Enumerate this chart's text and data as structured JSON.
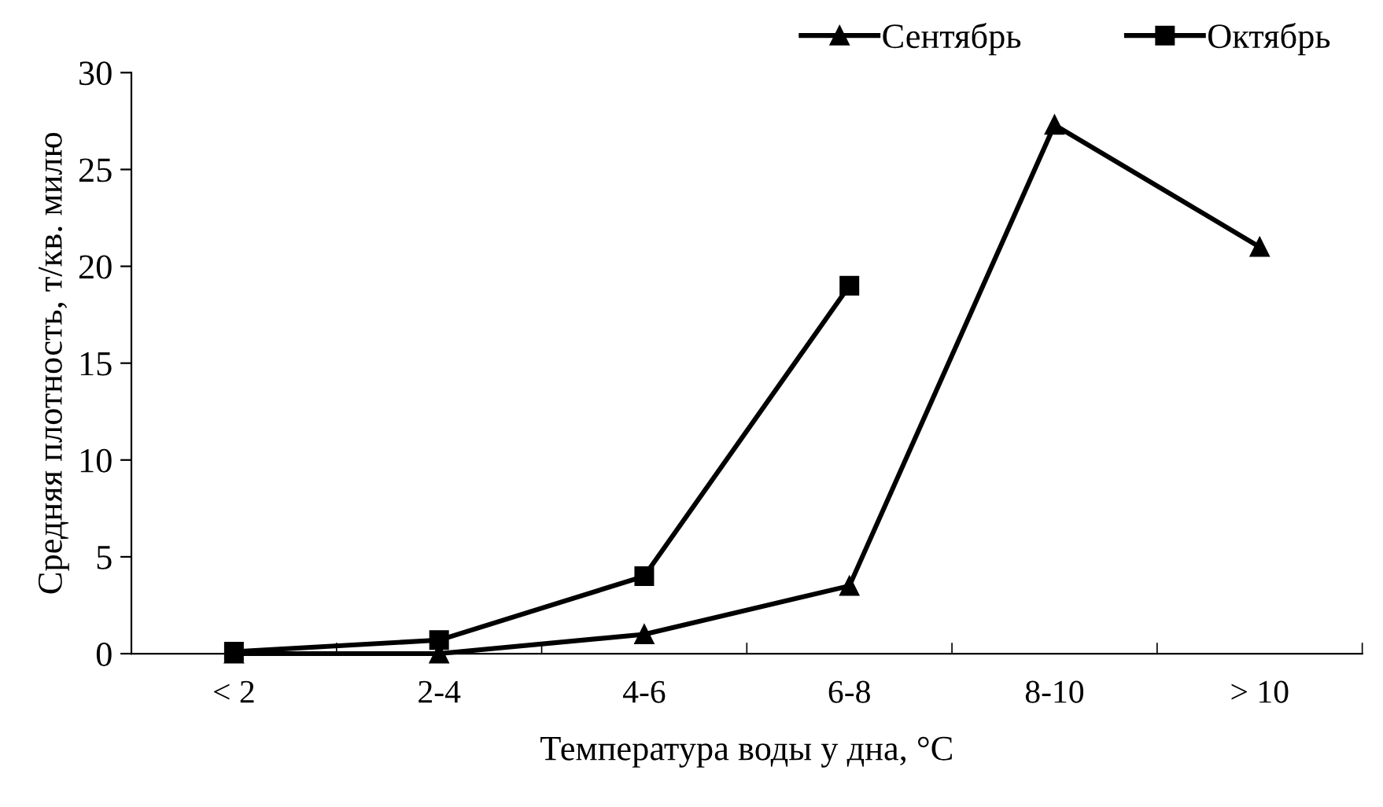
{
  "chart_data": {
    "type": "line",
    "xlabel": "Температура воды у дна, °C",
    "ylabel": "Средняя плотность, т/кв. милю",
    "categories": [
      "< 2",
      "2-4",
      "4-6",
      "6-8",
      "8-10",
      "> 10"
    ],
    "series": [
      {
        "name": "Сентябрь",
        "color": "#000000",
        "marker": "triangle",
        "values": [
          0,
          0,
          1.0,
          3.5,
          27.3,
          21.0
        ]
      },
      {
        "name": "Октябрь",
        "color": "#000000",
        "marker": "square",
        "values": [
          0.1,
          0.7,
          4.0,
          19.0,
          null,
          null
        ]
      }
    ],
    "ylim": [
      0,
      30
    ],
    "yticks": [
      0,
      5,
      10,
      15,
      20,
      25,
      30
    ],
    "grid": false,
    "legend": "top right",
    "line_style": "solid"
  }
}
